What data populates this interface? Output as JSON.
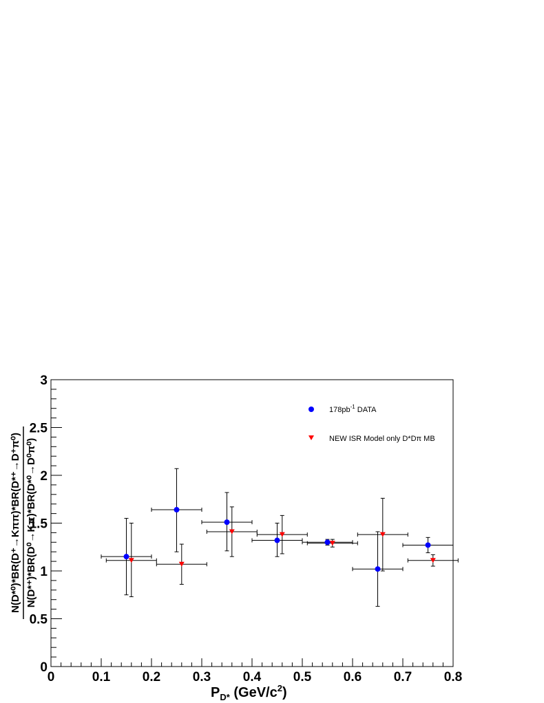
{
  "chart_data": {
    "type": "scatter",
    "xlabel": "P",
    "xlabel_sub": "D*",
    "xlabel_unit_pre": " (GeV/c",
    "xlabel_unit_sup": "2",
    "xlabel_unit_post": ")",
    "ylabel_numerator": "N(D*⁰)*BR(D⁺→Kππ)*BR(D*⁺→D⁺π⁰)",
    "ylabel_denominator": "N(D*⁺)*BR(D⁰→Kπ)*BR(D*⁰→D⁰π⁰)",
    "xlim": [
      0,
      0.8
    ],
    "ylim": [
      0,
      3
    ],
    "x_ticks": [
      "0",
      "0.1",
      "0.2",
      "0.3",
      "0.4",
      "0.5",
      "0.6",
      "0.7",
      "0.8"
    ],
    "y_ticks": [
      "0",
      "0.5",
      "1",
      "1.5",
      "2",
      "2.5",
      "3"
    ],
    "grid": false,
    "legend_position": "top-right",
    "series": [
      {
        "name": "178pb⁻¹ DATA",
        "name_main": "178pb",
        "name_sup": "-1",
        "name_post": " DATA",
        "color": "#0000ff",
        "marker": "circle",
        "points": [
          {
            "x": 0.15,
            "y": 1.15,
            "xerr": 0.05,
            "yerr_lo": 0.4,
            "yerr_hi": 0.4
          },
          {
            "x": 0.25,
            "y": 1.64,
            "xerr": 0.05,
            "yerr_lo": 0.44,
            "yerr_hi": 0.43
          },
          {
            "x": 0.35,
            "y": 1.51,
            "xerr": 0.05,
            "yerr_lo": 0.3,
            "yerr_hi": 0.31
          },
          {
            "x": 0.45,
            "y": 1.32,
            "xerr": 0.05,
            "yerr_lo": 0.17,
            "yerr_hi": 0.18
          },
          {
            "x": 0.55,
            "y": 1.3,
            "xerr": 0.05,
            "yerr_lo": 0.03,
            "yerr_hi": 0.03
          },
          {
            "x": 0.65,
            "y": 1.02,
            "xerr": 0.05,
            "yerr_lo": 0.39,
            "yerr_hi": 0.39
          },
          {
            "x": 0.75,
            "y": 1.27,
            "xerr": 0.05,
            "yerr_lo": 0.08,
            "yerr_hi": 0.08
          }
        ]
      },
      {
        "name": "NEW ISR Model only D*Dπ MB",
        "color": "#ff0000",
        "marker": "triangle-down",
        "points": [
          {
            "x": 0.16,
            "y": 1.11,
            "xerr": 0.05,
            "yerr_lo": 0.38,
            "yerr_hi": 0.39
          },
          {
            "x": 0.26,
            "y": 1.07,
            "xerr": 0.05,
            "yerr_lo": 0.21,
            "yerr_hi": 0.21
          },
          {
            "x": 0.36,
            "y": 1.41,
            "xerr": 0.05,
            "yerr_lo": 0.26,
            "yerr_hi": 0.26
          },
          {
            "x": 0.46,
            "y": 1.38,
            "xerr": 0.05,
            "yerr_lo": 0.2,
            "yerr_hi": 0.2
          },
          {
            "x": 0.56,
            "y": 1.29,
            "xerr": 0.05,
            "yerr_lo": 0.04,
            "yerr_hi": 0.04
          },
          {
            "x": 0.66,
            "y": 1.38,
            "xerr": 0.05,
            "yerr_lo": 0.38,
            "yerr_hi": 0.38
          },
          {
            "x": 0.76,
            "y": 1.11,
            "xerr": 0.05,
            "yerr_lo": 0.06,
            "yerr_hi": 0.06
          }
        ]
      }
    ]
  }
}
